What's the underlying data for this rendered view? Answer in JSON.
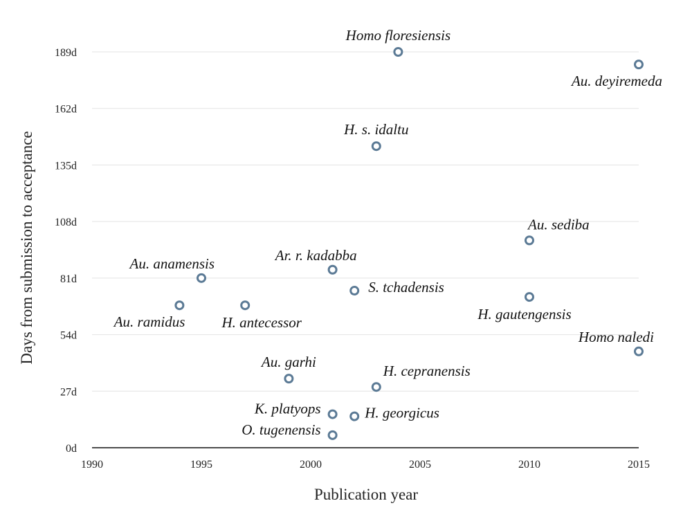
{
  "chart_data": {
    "type": "scatter",
    "title": "",
    "xlabel": "Publication year",
    "ylabel": "Days from submission to acceptance",
    "xlim": [
      1990,
      2015
    ],
    "ylim": [
      0,
      189
    ],
    "x_ticks": [
      {
        "value": 1990,
        "label": "1990"
      },
      {
        "value": 1995,
        "label": "1995"
      },
      {
        "value": 2000,
        "label": "2000"
      },
      {
        "value": 2005,
        "label": "2005"
      },
      {
        "value": 2010,
        "label": "2010"
      },
      {
        "value": 2015,
        "label": "2015"
      }
    ],
    "y_ticks": [
      {
        "value": 0,
        "label": "0d"
      },
      {
        "value": 27,
        "label": "27d"
      },
      {
        "value": 54,
        "label": "54d"
      },
      {
        "value": 81,
        "label": "81d"
      },
      {
        "value": 108,
        "label": "108d"
      },
      {
        "value": 135,
        "label": "135d"
      },
      {
        "value": 162,
        "label": "162d"
      },
      {
        "value": 189,
        "label": "189d"
      }
    ],
    "grid": "horizontal",
    "marker_color": "#5b7a95",
    "points": [
      {
        "label": "Homo floresiensis",
        "x": 2004,
        "y": 189,
        "label_position": "above"
      },
      {
        "label": "Au. deyiremeda",
        "x": 2015,
        "y": 183,
        "label_position": "below-left"
      },
      {
        "label": "H. s. idaltu",
        "x": 2003,
        "y": 144,
        "label_position": "above"
      },
      {
        "label": "Au. sediba",
        "x": 2010,
        "y": 99,
        "label_position": "above-right"
      },
      {
        "label": "Ar. r. kadabba",
        "x": 2001,
        "y": 85,
        "label_position": "above-left"
      },
      {
        "label": "Au. anamensis",
        "x": 1995,
        "y": 81,
        "label_position": "above-left"
      },
      {
        "label": "S. tchadensis",
        "x": 2002,
        "y": 75,
        "label_position": "right"
      },
      {
        "label": "H. gautengensis",
        "x": 2010,
        "y": 72,
        "label_position": "below"
      },
      {
        "label": "Au. ramidus",
        "x": 1994,
        "y": 68,
        "label_position": "below-left"
      },
      {
        "label": "H. antecessor",
        "x": 1997,
        "y": 68,
        "label_position": "below"
      },
      {
        "label": "Homo naledi",
        "x": 2015,
        "y": 46,
        "label_position": "above-left"
      },
      {
        "label": "Au. garhi",
        "x": 1999,
        "y": 33,
        "label_position": "above"
      },
      {
        "label": "H. cepranensis",
        "x": 2003,
        "y": 29,
        "label_position": "above-right"
      },
      {
        "label": "K. platyops",
        "x": 2001,
        "y": 16,
        "label_position": "left"
      },
      {
        "label": "H. georgicus",
        "x": 2002,
        "y": 15,
        "label_position": "right"
      },
      {
        "label": "O. tugenensis",
        "x": 2001,
        "y": 6,
        "label_position": "left"
      }
    ]
  }
}
